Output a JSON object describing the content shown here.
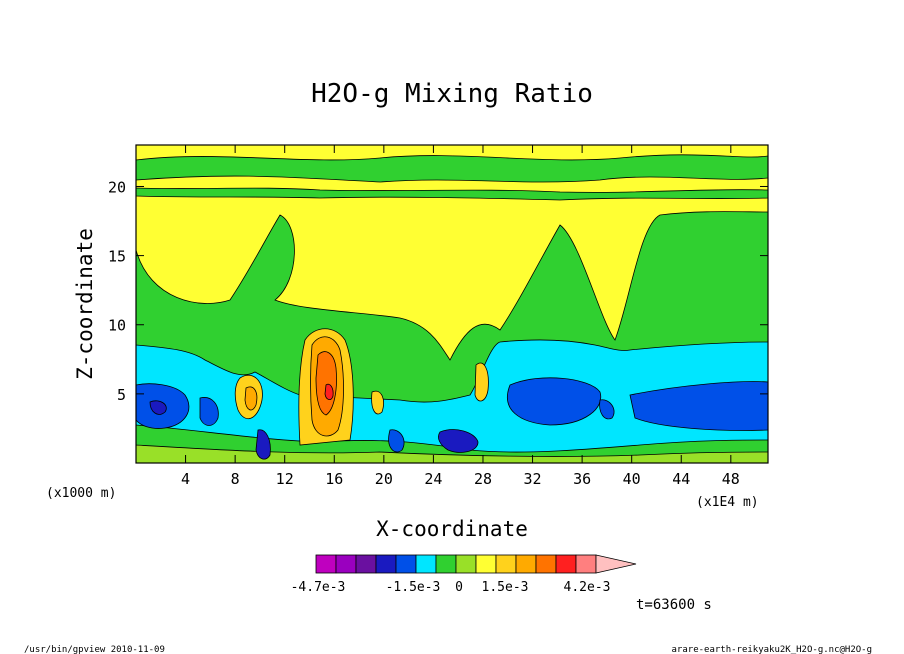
{
  "chart_data": {
    "type": "heatmap",
    "title": "H2O-g Mixing Ratio",
    "xlabel": "X-coordinate",
    "ylabel": "Z-coordinate",
    "x_unit_label": "(x1000 m)",
    "x_scale_label": "(x1E4 m)",
    "xlim": [
      0,
      51
    ],
    "ylim": [
      0,
      23
    ],
    "x_ticks": [
      "4",
      "8",
      "12",
      "16",
      "20",
      "24",
      "28",
      "32",
      "36",
      "40",
      "44",
      "48"
    ],
    "x_tick_values": [
      4,
      8,
      12,
      16,
      20,
      24,
      28,
      32,
      36,
      40,
      44,
      48
    ],
    "y_ticks": [
      "5",
      "10",
      "15",
      "20"
    ],
    "y_tick_values": [
      5,
      10,
      15,
      20
    ],
    "colorbar": {
      "labels": [
        "-4.7e-3",
        "-1.5e-3",
        "0",
        "1.5e-3",
        "4.2e-3"
      ],
      "colors": [
        "#bf00bf",
        "#9a00bf",
        "#6a10a0",
        "#1a1ac0",
        "#0050e8",
        "#00e6ff",
        "#30d030",
        "#99e028",
        "#ffff33",
        "#ffd21c",
        "#ffaa00",
        "#ff7300",
        "#ff2020",
        "#ff7f7f",
        "#ffc0c0"
      ]
    },
    "palette": {
      "violet": "#6a10a0",
      "dark_blue": "#1a1ac0",
      "blue": "#0050e8",
      "cyan": "#00e6ff",
      "green": "#30d030",
      "yellow_green": "#99e028",
      "yellow": "#ffff33",
      "gold": "#ffd21c",
      "orange": "#ffaa00",
      "deep_orange": "#ff7300",
      "red": "#ff2020"
    }
  },
  "time_label": "t=63600 s",
  "footer": {
    "left": "/usr/bin/gpview  2010-11-09",
    "right": "arare-earth-reikyaku2K_H2O-g.nc@H2O-g"
  }
}
